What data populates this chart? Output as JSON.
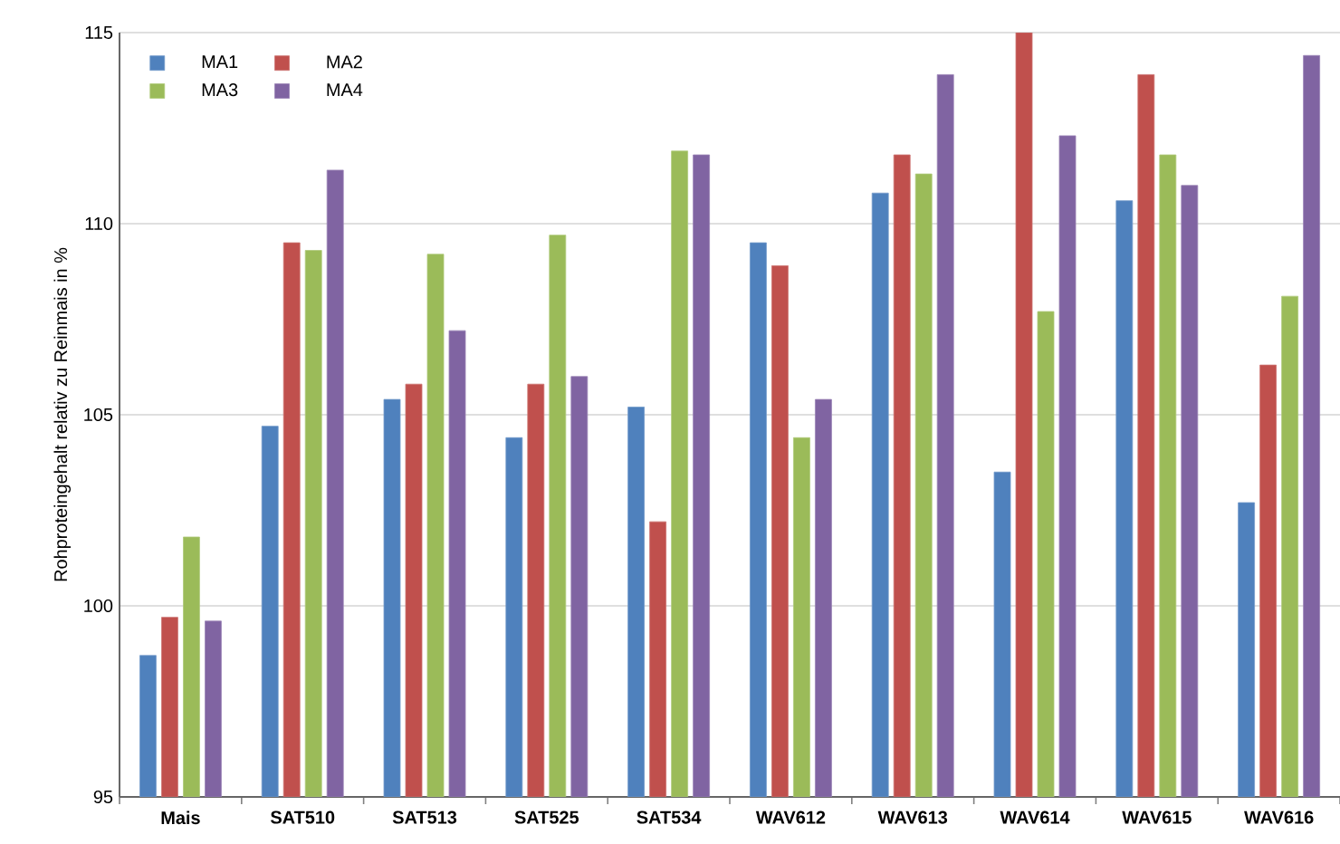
{
  "chart_data": {
    "type": "bar",
    "ylabel": "Rohproteingehalt relativ zu Reinmais in %",
    "categories": [
      "Mais",
      "SAT510",
      "SAT513",
      "SAT525",
      "SAT534",
      "WAV612",
      "WAV613",
      "WAV614",
      "WAV615",
      "WAV616"
    ],
    "series": [
      {
        "name": "MA1",
        "color": "#4f81bd",
        "values": [
          98.7,
          104.7,
          105.4,
          104.4,
          105.2,
          109.5,
          110.8,
          103.5,
          110.6,
          102.7
        ]
      },
      {
        "name": "MA2",
        "color": "#c0504d",
        "values": [
          99.7,
          109.5,
          105.8,
          105.8,
          102.2,
          108.9,
          111.8,
          115.0,
          113.9,
          106.3
        ]
      },
      {
        "name": "MA3",
        "color": "#9bbb59",
        "values": [
          101.8,
          109.3,
          109.2,
          109.7,
          111.9,
          104.4,
          111.3,
          107.7,
          111.8,
          108.1
        ]
      },
      {
        "name": "MA4",
        "color": "#8064a2",
        "values": [
          99.6,
          111.4,
          107.2,
          106.0,
          111.8,
          105.4,
          113.9,
          112.3,
          111.0,
          114.4
        ]
      }
    ],
    "ylim": [
      95,
      115
    ],
    "yticks": [
      95,
      100,
      105,
      110,
      115
    ],
    "grid": "y",
    "legend": "top left"
  }
}
